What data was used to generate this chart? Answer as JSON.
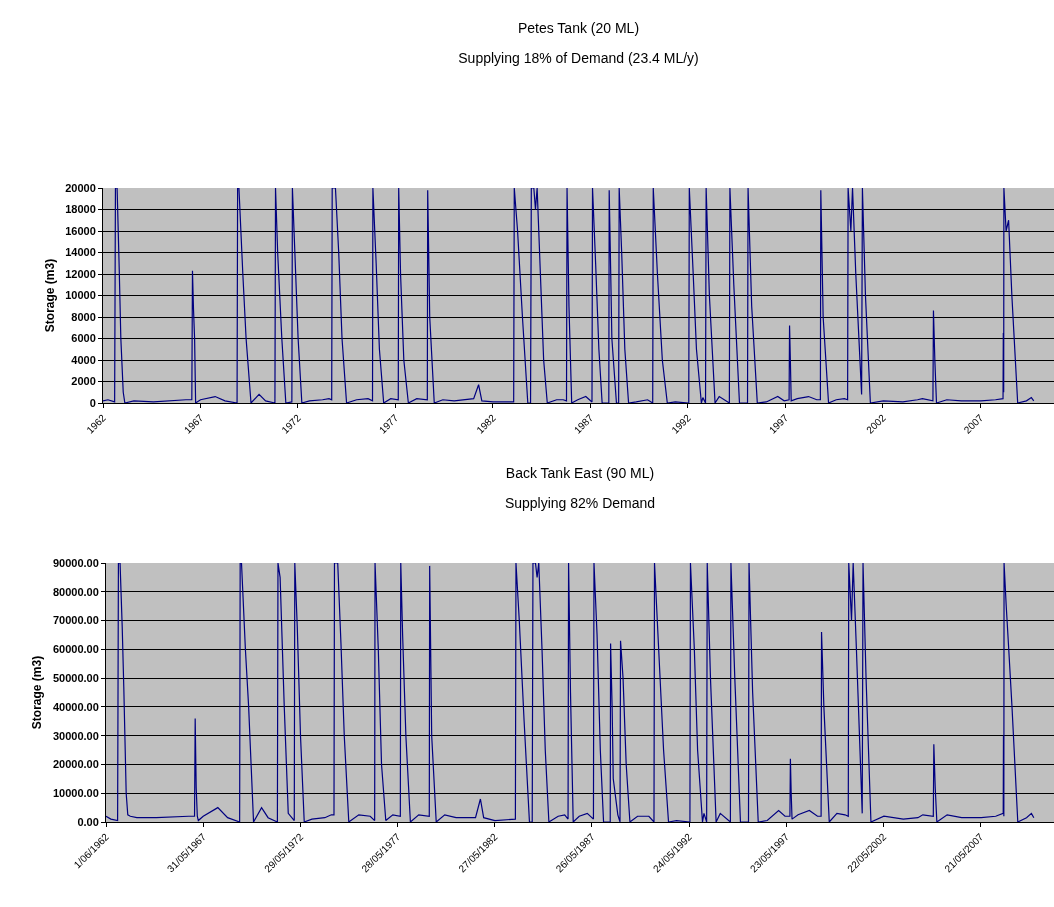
{
  "chart_data": [
    {
      "type": "line",
      "title": "Petes Tank (20 ML)",
      "subtitle": "Supplying 18% of Demand (23.4 ML/y)",
      "ylabel": "Storage (m3)",
      "grid": "y",
      "xlim": [
        "1962-06-01",
        "2011-03-01"
      ],
      "xticks": [
        {
          "value": "1962-06-01",
          "label": "1962"
        },
        {
          "value": "1967-05-31",
          "label": "1967"
        },
        {
          "value": "1972-05-29",
          "label": "1972"
        },
        {
          "value": "1977-05-28",
          "label": "1977"
        },
        {
          "value": "1982-05-27",
          "label": "1982"
        },
        {
          "value": "1987-05-26",
          "label": "1987"
        },
        {
          "value": "1992-05-24",
          "label": "1992"
        },
        {
          "value": "1997-05-23",
          "label": "1997"
        },
        {
          "value": "2002-05-22",
          "label": "2002"
        },
        {
          "value": "2007-05-21",
          "label": "2007"
        }
      ],
      "ylim": [
        0,
        20000
      ],
      "yticks": [
        0,
        2000,
        4000,
        6000,
        8000,
        10000,
        12000,
        14000,
        16000,
        18000,
        20000
      ],
      "series": [
        {
          "color": "#000080",
          "x": [
            "1962-06-01",
            "1962-09-01",
            "1963-01-05",
            "1963-01-20",
            "1963-02-20",
            "1963-04-01",
            "1963-05-01",
            "1963-06-15",
            "1963-07-15",
            "1964-01-01",
            "1965-01-01",
            "1966-09-01",
            "1966-12-20",
            "1967-01-01",
            "1967-01-20",
            "1967-02-10",
            "1967-03-01",
            "1967-06-01",
            "1968-03-01",
            "1968-09-01",
            "1969-04-15",
            "1969-04-25",
            "1969-05-20",
            "1969-08-01",
            "1969-10-01",
            "1970-01-01",
            "1970-06-01",
            "1970-10-01",
            "1971-03-25",
            "1971-04-05",
            "1971-05-15",
            "1971-08-01",
            "1971-10-15",
            "1972-02-05",
            "1972-02-15",
            "1972-04-01",
            "1972-06-01",
            "1972-08-10",
            "1973-01-01",
            "1973-09-01",
            "1974-01-01",
            "1974-02-20",
            "1974-03-01",
            "1974-05-01",
            "1974-07-01",
            "1974-09-01",
            "1974-11-25",
            "1975-06-01",
            "1976-01-01",
            "1976-03-25",
            "1976-04-01",
            "1976-06-01",
            "1976-08-01",
            "1976-10-20",
            "1977-03-01",
            "1977-07-20",
            "1977-07-28",
            "1977-09-01",
            "1977-11-01",
            "1978-01-25",
            "1978-07-01",
            "1979-01-15",
            "1979-01-22",
            "1979-03-01",
            "1979-05-25",
            "1979-11-01",
            "1980-06-01",
            "1981-06-01",
            "1981-09-01",
            "1981-11-01",
            "1982-06-01",
            "1983-06-20",
            "1983-07-01",
            "1983-09-01",
            "1983-12-01",
            "1984-03-10",
            "1984-05-01",
            "1984-05-15",
            "1984-07-01",
            "1984-08-01",
            "1984-09-01",
            "1984-11-01",
            "1985-01-01",
            "1985-03-10",
            "1985-09-01",
            "1986-01-01",
            "1986-03-05",
            "1986-03-15",
            "1986-04-20",
            "1986-06-10",
            "1986-10-01",
            "1987-03-01",
            "1987-06-25",
            "1987-07-05",
            "1987-09-01",
            "1987-11-01",
            "1988-01-01",
            "1988-05-05",
            "1988-05-12",
            "1988-06-10",
            "1988-07-01",
            "1988-09-25",
            "1988-11-05",
            "1988-11-15",
            "1989-01-01",
            "1989-03-01",
            "1989-05-10",
            "1989-10-01",
            "1990-05-01",
            "1990-08-05",
            "1990-08-15",
            "1990-11-01",
            "1991-02-01",
            "1991-05-05",
            "1991-10-01",
            "1992-06-10",
            "1992-06-20",
            "1992-09-01",
            "1992-11-01",
            "1993-02-01",
            "1993-03-01",
            "1993-04-20",
            "1993-05-01",
            "1993-07-01",
            "1993-10-15",
            "1994-01-01",
            "1994-07-10",
            "1994-07-20",
            "1994-10-01",
            "1995-01-15",
            "1995-06-15",
            "1995-06-25",
            "1995-09-01",
            "1995-12-15",
            "1996-06-01",
            "1997-01-01",
            "1997-05-01",
            "1997-08-01",
            "1997-08-10",
            "1997-08-25",
            "1997-09-10",
            "1998-01-01",
            "1998-08-01",
            "1999-01-01",
            "1999-03-10",
            "1999-03-18",
            "1999-05-01",
            "1999-08-10",
            "2000-01-01",
            "2000-06-01",
            "2000-08-01",
            "2000-08-10",
            "2000-10-01",
            "2000-11-01",
            "2001-01-01",
            "2001-04-20",
            "2001-05-05",
            "2001-07-01",
            "2001-10-01",
            "2002-06-01",
            "2003-06-01",
            "2004-03-01",
            "2004-06-01",
            "2004-12-15",
            "2004-12-25",
            "2005-01-20",
            "2005-02-20",
            "2005-09-01",
            "2006-06-01",
            "2007-06-01",
            "2008-03-01",
            "2008-07-20",
            "2008-07-25",
            "2008-08-01",
            "2008-08-05",
            "2008-09-15",
            "2008-11-01",
            "2009-01-01",
            "2009-04-20",
            "2009-10-01",
            "2010-01-01",
            "2010-02-15"
          ],
          "values": [
            200,
            300,
            100,
            20000,
            20000,
            12400,
            6000,
            1000,
            0,
            200,
            100,
            300,
            300,
            12300,
            8800,
            6000,
            0,
            300,
            600,
            200,
            0,
            20000,
            20000,
            12000,
            6000,
            0,
            800,
            200,
            0,
            20000,
            14000,
            6000,
            0,
            100,
            20000,
            14000,
            6000,
            0,
            200,
            300,
            400,
            300,
            20000,
            20000,
            14000,
            6000,
            0,
            300,
            400,
            200,
            20000,
            13000,
            5000,
            0,
            400,
            300,
            20000,
            12000,
            4000,
            0,
            400,
            300,
            19800,
            8000,
            0,
            300,
            200,
            400,
            1700,
            200,
            100,
            100,
            20000,
            16000,
            8000,
            0,
            0,
            20000,
            20000,
            18000,
            20000,
            12000,
            4000,
            0,
            300,
            300,
            200,
            20000,
            9000,
            0,
            300,
            600,
            100,
            20000,
            13000,
            5000,
            0,
            0,
            19800,
            12000,
            6000,
            0,
            0,
            20000,
            14000,
            5000,
            0,
            100,
            300,
            0,
            20000,
            12000,
            4000,
            0,
            100,
            0,
            20000,
            12000,
            5000,
            0,
            500,
            0,
            20000,
            10000,
            0,
            600,
            0,
            20000,
            11000,
            0,
            0,
            20000,
            9000,
            0,
            100,
            600,
            200,
            300,
            7200,
            4000,
            200,
            400,
            600,
            300,
            300,
            19800,
            8000,
            0,
            300,
            400,
            300,
            20000,
            16000,
            20000,
            12000,
            800,
            20000,
            10000,
            0,
            200,
            100,
            300,
            400,
            200,
            8600,
            4000,
            0,
            300,
            200,
            200,
            300,
            400,
            6500,
            1000,
            20000,
            16000,
            17000,
            10000,
            0,
            200,
            500,
            200
          ]
        }
      ]
    },
    {
      "type": "line",
      "title": "Back Tank East (90 ML)",
      "subtitle": "Supplying 82% Demand",
      "ylabel": "Storage (m3)",
      "grid": "y",
      "xlim": [
        "1962-06-01",
        "2011-03-01"
      ],
      "xticks": [
        {
          "value": "1962-06-01",
          "label": "1/06/1962"
        },
        {
          "value": "1967-05-31",
          "label": "31/05/1967"
        },
        {
          "value": "1972-05-29",
          "label": "29/05/1972"
        },
        {
          "value": "1977-05-28",
          "label": "28/05/1977"
        },
        {
          "value": "1982-05-27",
          "label": "27/05/1982"
        },
        {
          "value": "1987-05-26",
          "label": "26/05/1987"
        },
        {
          "value": "1992-05-24",
          "label": "24/05/1992"
        },
        {
          "value": "1997-05-23",
          "label": "23/05/1997"
        },
        {
          "value": "2002-05-22",
          "label": "22/05/2002"
        },
        {
          "value": "2007-05-21",
          "label": "21/05/2007"
        }
      ],
      "ylim": [
        0,
        90000
      ],
      "yticks": [
        {
          "value": 0,
          "label": "0.00"
        },
        {
          "value": 10000,
          "label": "10000.00"
        },
        {
          "value": 20000,
          "label": "20000.00"
        },
        {
          "value": 30000,
          "label": "30000.00"
        },
        {
          "value": 40000,
          "label": "40000.00"
        },
        {
          "value": 50000,
          "label": "50000.00"
        },
        {
          "value": 60000,
          "label": "60000.00"
        },
        {
          "value": 70000,
          "label": "70000.00"
        },
        {
          "value": 80000,
          "label": "80000.00"
        },
        {
          "value": 90000,
          "label": "90000.00"
        }
      ],
      "series": [
        {
          "color": "#000080",
          "x": [
            "1962-06-01",
            "1962-09-01",
            "1963-01-05",
            "1963-01-20",
            "1963-02-20",
            "1963-04-01",
            "1963-05-01",
            "1963-06-15",
            "1963-07-15",
            "1963-09-01",
            "1964-01-01",
            "1965-01-01",
            "1966-09-01",
            "1966-12-20",
            "1967-01-01",
            "1967-01-20",
            "1967-02-10",
            "1967-03-01",
            "1967-06-01",
            "1968-03-01",
            "1968-09-01",
            "1969-04-15",
            "1969-04-25",
            "1969-05-20",
            "1969-08-01",
            "1969-10-01",
            "1970-01-01",
            "1970-06-01",
            "1970-10-01",
            "1971-03-25",
            "1971-04-05",
            "1971-05-15",
            "1971-08-01",
            "1971-10-15",
            "1972-02-05",
            "1972-02-15",
            "1972-04-01",
            "1972-06-01",
            "1972-08-10",
            "1973-01-01",
            "1973-09-01",
            "1974-01-01",
            "1974-02-20",
            "1974-03-01",
            "1974-05-01",
            "1974-07-01",
            "1974-09-01",
            "1974-11-25",
            "1975-06-01",
            "1976-01-01",
            "1976-03-25",
            "1976-04-01",
            "1976-06-01",
            "1976-08-01",
            "1976-10-20",
            "1977-03-01",
            "1977-07-20",
            "1977-07-28",
            "1977-09-01",
            "1977-11-01",
            "1978-01-25",
            "1978-07-01",
            "1979-01-15",
            "1979-01-22",
            "1979-03-01",
            "1979-05-25",
            "1979-11-01",
            "1980-06-01",
            "1981-06-01",
            "1981-09-01",
            "1981-11-01",
            "1982-06-01",
            "1983-06-20",
            "1983-07-01",
            "1983-09-01",
            "1983-12-01",
            "1984-03-10",
            "1984-05-01",
            "1984-05-15",
            "1984-07-01",
            "1984-08-01",
            "1984-09-01",
            "1984-11-01",
            "1985-01-01",
            "1985-03-10",
            "1985-09-01",
            "1986-01-01",
            "1986-03-05",
            "1986-03-15",
            "1986-04-20",
            "1986-06-10",
            "1986-10-01",
            "1987-03-01",
            "1987-06-25",
            "1987-07-05",
            "1987-09-01",
            "1987-11-01",
            "1988-01-01",
            "1988-05-05",
            "1988-05-12",
            "1988-06-10",
            "1988-07-01",
            "1988-09-25",
            "1988-11-05",
            "1988-11-15",
            "1989-01-01",
            "1989-03-01",
            "1989-05-10",
            "1989-10-01",
            "1990-05-01",
            "1990-08-05",
            "1990-08-15",
            "1990-11-01",
            "1991-02-01",
            "1991-05-05",
            "1991-10-01",
            "1992-06-10",
            "1992-06-20",
            "1992-09-01",
            "1992-11-01",
            "1993-02-01",
            "1993-03-01",
            "1993-04-20",
            "1993-05-01",
            "1993-07-01",
            "1993-10-15",
            "1994-01-01",
            "1994-07-10",
            "1994-07-20",
            "1994-10-01",
            "1995-01-15",
            "1995-06-15",
            "1995-06-25",
            "1995-09-01",
            "1995-12-15",
            "1996-06-01",
            "1997-01-01",
            "1997-05-01",
            "1997-08-01",
            "1997-08-10",
            "1997-08-25",
            "1997-09-10",
            "1998-01-01",
            "1998-08-01",
            "1999-01-01",
            "1999-03-10",
            "1999-03-18",
            "1999-05-01",
            "1999-08-10",
            "2000-01-01",
            "2000-06-01",
            "2000-08-01",
            "2000-08-10",
            "2000-10-01",
            "2000-11-01",
            "2001-01-01",
            "2001-04-20",
            "2001-05-05",
            "2001-07-01",
            "2001-10-01",
            "2002-06-01",
            "2003-06-01",
            "2004-03-01",
            "2004-06-01",
            "2004-12-15",
            "2004-12-25",
            "2005-01-20",
            "2005-02-20",
            "2005-09-01",
            "2006-06-01",
            "2007-06-01",
            "2008-03-01",
            "2008-07-20",
            "2008-07-25",
            "2008-08-01",
            "2008-08-05",
            "2008-09-15",
            "2008-11-01",
            "2009-01-01",
            "2009-04-20",
            "2009-10-01",
            "2010-01-01",
            "2010-02-15"
          ],
          "values": [
            2000,
            1000,
            500,
            90000,
            90000,
            68000,
            47000,
            10000,
            2500,
            2000,
            1500,
            1500,
            2000,
            2000,
            36000,
            12000,
            2000,
            500,
            2000,
            5000,
            1500,
            0,
            90000,
            90000,
            60000,
            40000,
            0,
            5000,
            1500,
            0,
            90000,
            85000,
            40000,
            3000,
            500,
            90000,
            68000,
            30000,
            0,
            1000,
            1500,
            2500,
            2500,
            90000,
            90000,
            62000,
            30000,
            0,
            2500,
            2000,
            500,
            90000,
            60000,
            20000,
            500,
            2500,
            2000,
            90000,
            65000,
            30000,
            0,
            2500,
            2000,
            89000,
            30000,
            0,
            2500,
            1500,
            1500,
            8000,
            1500,
            500,
            1000,
            90000,
            70000,
            35000,
            0,
            0,
            90000,
            90000,
            85000,
            90000,
            60000,
            25000,
            0,
            2000,
            2500,
            1000,
            90000,
            45000,
            0,
            2000,
            3000,
            1000,
            90000,
            65000,
            25000,
            0,
            0,
            62000,
            40000,
            15000,
            2500,
            0,
            63000,
            50000,
            20000,
            0,
            2000,
            2000,
            0,
            90000,
            60000,
            25000,
            0,
            500,
            0,
            90000,
            60000,
            25000,
            0,
            3000,
            0,
            90000,
            50000,
            0,
            3000,
            0,
            90000,
            50000,
            0,
            0,
            90000,
            45000,
            0,
            500,
            4000,
            2000,
            2000,
            22000,
            10000,
            1000,
            2500,
            4000,
            2000,
            2000,
            66000,
            40000,
            0,
            3000,
            2500,
            2000,
            90000,
            70000,
            90000,
            60000,
            3000,
            90000,
            50000,
            0,
            2000,
            1000,
            1500,
            2500,
            2000,
            27000,
            12000,
            0,
            2500,
            1500,
            1500,
            2000,
            3000,
            30000,
            2000,
            90000,
            75000,
            60000,
            40000,
            0,
            1500,
            3000,
            1500
          ]
        }
      ]
    }
  ]
}
